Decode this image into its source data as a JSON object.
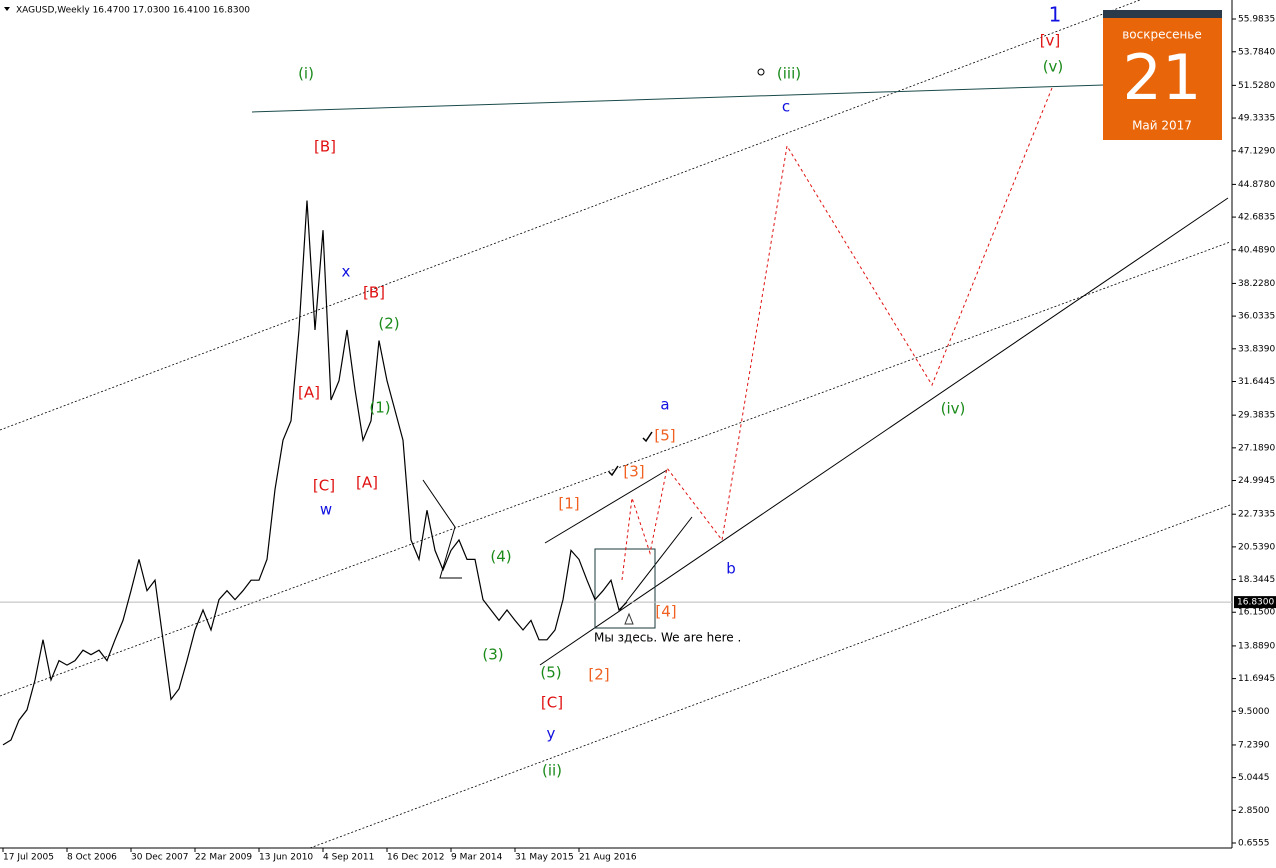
{
  "chart_data": {
    "type": "line",
    "title": "XAGUSD,Weekly  16.4700 17.0300 16.4100 16.8300",
    "categories": [
      "17 Jul 2005",
      null,
      null,
      null,
      null,
      null,
      null,
      null,
      "8 Oct 2006",
      null,
      null,
      null,
      null,
      null,
      null,
      null,
      "30 Dec 2007",
      null,
      null,
      null,
      null,
      null,
      null,
      null,
      "22 Mar 2009",
      null,
      null,
      null,
      null,
      null,
      null,
      null,
      "13 Jun 2010",
      null,
      null,
      null,
      null,
      null,
      null,
      null,
      "4 Sep 2011",
      null,
      null,
      null,
      null,
      null,
      null,
      null,
      "16 Dec 2012",
      null,
      null,
      null,
      null,
      null,
      null,
      null,
      "9 Mar 2014",
      null,
      null,
      null,
      null,
      null,
      null,
      null,
      "31 May 2015",
      null,
      null,
      null,
      null,
      null,
      null,
      null,
      "21 Aug 2016",
      null,
      null,
      null,
      null,
      null,
      null
    ],
    "series": [
      {
        "name": "XAGUSD",
        "color": "#000000",
        "values": [
          7.24,
          7.57,
          8.9,
          9.6,
          11.6,
          14.3,
          11.6,
          12.9,
          12.6,
          12.9,
          13.6,
          13.3,
          13.6,
          12.9,
          14.3,
          15.6,
          17.6,
          19.7,
          17.6,
          18.3,
          14.3,
          10.3,
          11.0,
          12.9,
          14.96,
          16.3,
          14.96,
          17.0,
          17.6,
          17.0,
          17.6,
          18.3,
          18.3,
          19.7,
          24.4,
          27.7,
          29.0,
          35.1,
          43.8,
          35.1,
          41.8,
          30.4,
          31.7,
          35.1,
          31.1,
          27.7,
          29.0,
          34.4,
          31.7,
          29.7,
          27.7,
          21.0,
          19.7,
          23.0,
          20.3,
          19.0,
          20.3,
          21.0,
          19.7,
          19.7,
          17.0,
          16.3,
          15.6,
          16.3,
          15.6,
          14.96,
          15.6,
          14.3,
          14.3,
          14.96,
          17.0,
          20.3,
          19.7,
          18.3,
          17.0,
          17.6,
          18.3,
          16.3,
          16.83
        ]
      }
    ],
    "ylim": [
      0.32,
      57.26
    ],
    "yticks": [
      55.9835,
      {
        "value": 53.784,
        "label": "53.7840"
      },
      {
        "value": 51.528,
        "label": "51.5280"
      },
      49.3335,
      {
        "value": 47.129,
        "label": "47.1290"
      },
      {
        "value": 44.878,
        "label": "44.8780"
      },
      42.6835,
      {
        "value": 40.489,
        "label": "40.4890"
      },
      {
        "value": 38.228,
        "label": "38.2280"
      },
      36.0335,
      {
        "value": 33.839,
        "label": "33.8390"
      },
      31.6445,
      29.3835,
      {
        "value": 27.189,
        "label": "27.1890"
      },
      24.9945,
      22.7335,
      {
        "value": 20.539,
        "label": "20.5390"
      },
      18.3445,
      {
        "value": 16.15,
        "label": "16.1500"
      },
      {
        "value": 13.889,
        "label": "13.8890"
      },
      11.6945,
      {
        "value": 9.5,
        "label": "9.5000"
      },
      {
        "value": 7.239,
        "label": "7.2390"
      },
      5.0445,
      {
        "value": 2.85,
        "label": "2.8500"
      },
      0.6555
    ],
    "price_line": {
      "value": 16.83,
      "label": "16.8300"
    },
    "annotations": [
      {
        "text": "(i)",
        "color": "#1a8a1a"
      },
      {
        "text": "[B]",
        "color": "#e01010"
      },
      {
        "text": "x",
        "color": "#1010e0"
      },
      {
        "text": "[B]",
        "color": "#e01010"
      },
      {
        "text": "(2)",
        "color": "#1a8a1a"
      },
      {
        "text": "[A]",
        "color": "#e01010"
      },
      {
        "text": "(1)",
        "color": "#1a8a1a"
      },
      {
        "text": "[C]",
        "color": "#e01010"
      },
      {
        "text": "[A]",
        "color": "#e01010"
      },
      {
        "text": "w",
        "color": "#1010e0"
      },
      {
        "text": "(4)",
        "color": "#1a8a1a"
      },
      {
        "text": "(3)",
        "color": "#1a8a1a"
      },
      {
        "text": "(5)",
        "color": "#1a8a1a"
      },
      {
        "text": "[C]",
        "color": "#e01010"
      },
      {
        "text": "y",
        "color": "#1010e0"
      },
      {
        "text": "(ii)",
        "color": "#1a8a1a"
      },
      {
        "text": "[1]",
        "color": "#f06020"
      },
      {
        "text": "[2]",
        "color": "#f06020"
      },
      {
        "text": "[3]",
        "color": "#f06020"
      },
      {
        "text": "[4]",
        "color": "#f06020"
      },
      {
        "text": "[5]",
        "color": "#f06020"
      },
      {
        "text": "a",
        "color": "#1010e0"
      },
      {
        "text": "b",
        "color": "#1010e0"
      },
      {
        "text": "c",
        "color": "#1010e0"
      },
      {
        "text": "(iii)",
        "color": "#1a8a1a"
      },
      {
        "text": "(iv)",
        "color": "#1a8a1a"
      },
      {
        "text": "(v)",
        "color": "#1a8a1a"
      },
      {
        "text": "[v]",
        "color": "#e01010"
      },
      {
        "text": "1",
        "color": "#1010e0"
      },
      {
        "text": "Мы здесь. We are here .",
        "color": "#555555"
      }
    ],
    "calendar": {
      "weekday": "воскресенье",
      "day": "21",
      "month_year": "Май 2017"
    }
  }
}
